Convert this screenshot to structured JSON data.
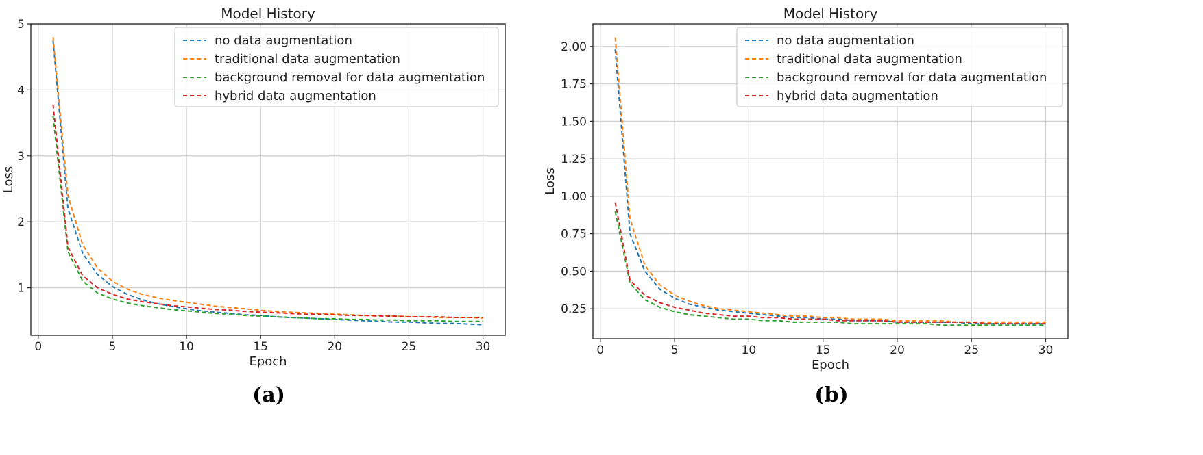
{
  "chart_data": [
    {
      "type": "line",
      "panel_label": "(a)",
      "title": "Model History",
      "xlabel": "Epoch",
      "ylabel": "Loss",
      "xlim": [
        -0.5,
        31.5
      ],
      "ylim": [
        0.28,
        5.0
      ],
      "xticks": [
        0,
        5,
        10,
        15,
        20,
        25,
        30
      ],
      "yticks": [
        1,
        2,
        3,
        4,
        5
      ],
      "grid": true,
      "legend_position": "top-right",
      "x": [
        1,
        2,
        3,
        4,
        5,
        6,
        7,
        8,
        9,
        10,
        11,
        12,
        13,
        14,
        15,
        16,
        17,
        18,
        19,
        20,
        21,
        22,
        23,
        24,
        25,
        26,
        27,
        28,
        29,
        30
      ],
      "series": [
        {
          "name": "no data augmentation",
          "color": "#1f77b4",
          "values": [
            4.75,
            2.2,
            1.52,
            1.2,
            1.02,
            0.9,
            0.82,
            0.76,
            0.72,
            0.68,
            0.65,
            0.63,
            0.61,
            0.59,
            0.58,
            0.56,
            0.55,
            0.54,
            0.53,
            0.52,
            0.51,
            0.5,
            0.49,
            0.48,
            0.48,
            0.47,
            0.46,
            0.46,
            0.45,
            0.44
          ]
        },
        {
          "name": "traditional data augmentation",
          "color": "#ff7f0e",
          "values": [
            4.8,
            2.4,
            1.65,
            1.3,
            1.1,
            0.98,
            0.9,
            0.85,
            0.81,
            0.78,
            0.75,
            0.72,
            0.7,
            0.68,
            0.66,
            0.64,
            0.63,
            0.62,
            0.61,
            0.6,
            0.59,
            0.58,
            0.58,
            0.57,
            0.56,
            0.56,
            0.55,
            0.55,
            0.55,
            0.54
          ]
        },
        {
          "name": "background removal for data augmentation",
          "color": "#2ca02c",
          "values": [
            3.6,
            1.55,
            1.1,
            0.92,
            0.83,
            0.77,
            0.73,
            0.7,
            0.67,
            0.65,
            0.63,
            0.61,
            0.6,
            0.58,
            0.57,
            0.56,
            0.55,
            0.54,
            0.53,
            0.53,
            0.52,
            0.52,
            0.51,
            0.51,
            0.5,
            0.5,
            0.5,
            0.49,
            0.49,
            0.49
          ]
        },
        {
          "name": "hybrid data augmentation",
          "color": "#d62728",
          "values": [
            3.78,
            1.62,
            1.18,
            1.0,
            0.9,
            0.83,
            0.79,
            0.76,
            0.73,
            0.71,
            0.69,
            0.67,
            0.66,
            0.64,
            0.63,
            0.62,
            0.61,
            0.6,
            0.6,
            0.59,
            0.58,
            0.58,
            0.57,
            0.57,
            0.56,
            0.56,
            0.56,
            0.55,
            0.55,
            0.55
          ]
        }
      ]
    },
    {
      "type": "line",
      "panel_label": "(b)",
      "title": "Model History",
      "xlabel": "Epoch",
      "ylabel": "Loss",
      "xlim": [
        -0.5,
        31.5
      ],
      "ylim": [
        0.05,
        2.15
      ],
      "xticks": [
        0,
        5,
        10,
        15,
        20,
        25,
        30
      ],
      "yticks": [
        "0.25",
        "0.50",
        "0.75",
        "1.00",
        "1.25",
        "1.50",
        "1.75",
        "2.00"
      ],
      "grid": true,
      "legend_position": "top-right",
      "x": [
        1,
        2,
        3,
        4,
        5,
        6,
        7,
        8,
        9,
        10,
        11,
        12,
        13,
        14,
        15,
        16,
        17,
        18,
        19,
        20,
        21,
        22,
        23,
        24,
        25,
        26,
        27,
        28,
        29,
        30
      ],
      "series": [
        {
          "name": "no data augmentation",
          "color": "#1f77b4",
          "values": [
            1.98,
            0.75,
            0.5,
            0.38,
            0.32,
            0.28,
            0.26,
            0.24,
            0.23,
            0.22,
            0.21,
            0.2,
            0.19,
            0.19,
            0.18,
            0.18,
            0.17,
            0.17,
            0.17,
            0.16,
            0.16,
            0.16,
            0.16,
            0.16,
            0.15,
            0.15,
            0.15,
            0.15,
            0.15,
            0.15
          ]
        },
        {
          "name": "traditional data augmentation",
          "color": "#ff7f0e",
          "values": [
            2.06,
            0.85,
            0.54,
            0.41,
            0.34,
            0.3,
            0.27,
            0.25,
            0.24,
            0.23,
            0.22,
            0.21,
            0.2,
            0.2,
            0.19,
            0.19,
            0.18,
            0.18,
            0.18,
            0.17,
            0.17,
            0.17,
            0.17,
            0.16,
            0.16,
            0.16,
            0.16,
            0.16,
            0.16,
            0.16
          ]
        },
        {
          "name": "background removal for data augmentation",
          "color": "#2ca02c",
          "values": [
            0.9,
            0.42,
            0.31,
            0.26,
            0.23,
            0.21,
            0.2,
            0.19,
            0.18,
            0.18,
            0.17,
            0.17,
            0.16,
            0.16,
            0.16,
            0.16,
            0.15,
            0.15,
            0.15,
            0.15,
            0.15,
            0.15,
            0.14,
            0.14,
            0.14,
            0.14,
            0.14,
            0.14,
            0.14,
            0.14
          ]
        },
        {
          "name": "hybrid data augmentation",
          "color": "#d62728",
          "values": [
            0.96,
            0.44,
            0.34,
            0.29,
            0.26,
            0.24,
            0.22,
            0.21,
            0.2,
            0.2,
            0.19,
            0.19,
            0.18,
            0.18,
            0.18,
            0.17,
            0.17,
            0.17,
            0.17,
            0.16,
            0.16,
            0.16,
            0.16,
            0.16,
            0.16,
            0.15,
            0.15,
            0.15,
            0.15,
            0.15
          ]
        }
      ]
    }
  ]
}
